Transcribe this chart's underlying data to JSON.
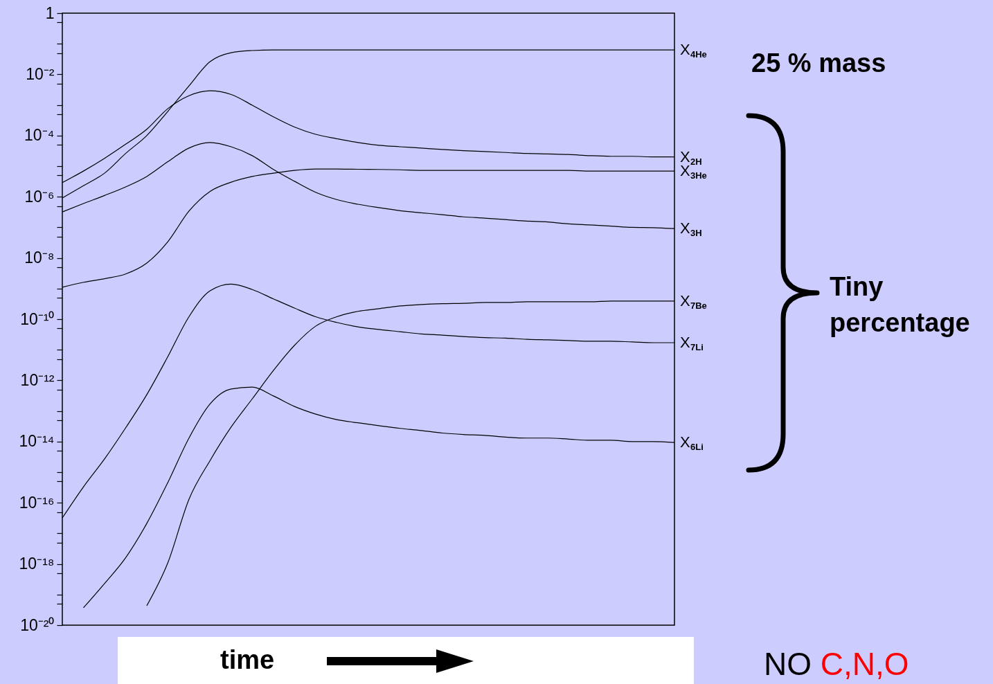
{
  "chart_data": {
    "type": "line",
    "xlabel": "time",
    "log": true,
    "line_style": "solid",
    "tick_labels": "y",
    "categories": [
      null,
      null,
      null,
      null,
      null,
      null,
      null,
      null,
      null,
      null,
      null,
      null,
      null,
      null,
      null,
      null,
      null,
      null,
      null,
      null,
      null,
      null,
      null,
      null,
      null,
      null,
      null,
      null,
      null,
      null
    ],
    "ylim": [
      1e-20,
      1
    ],
    "yticks": [
      {
        "value": 1,
        "label": "1"
      },
      {
        "value": 0.5,
        "label": null
      },
      {
        "value": 0.1,
        "label": null
      },
      {
        "value": 0.05,
        "label": null
      },
      {
        "value": 0.01,
        "label": "10⁻²"
      },
      {
        "value": 0.005,
        "label": null
      },
      {
        "value": 0.001,
        "label": null
      },
      {
        "value": 0.0005,
        "label": null
      },
      {
        "value": 0.0001,
        "label": "10⁻⁴"
      },
      {
        "value": 5e-05,
        "label": null
      },
      {
        "value": 1e-05,
        "label": null
      },
      {
        "value": 5e-06,
        "label": null
      },
      {
        "value": 1e-06,
        "label": "10⁻⁶"
      },
      {
        "value": 5e-07,
        "label": null
      },
      {
        "value": 1e-07,
        "label": null
      },
      {
        "value": 5e-08,
        "label": null
      },
      {
        "value": 1e-08,
        "label": "10⁻⁸"
      },
      {
        "value": 5e-09,
        "label": null
      },
      {
        "value": 1e-09,
        "label": null
      },
      {
        "value": 5e-10,
        "label": null
      },
      {
        "value": 1e-10,
        "label": "10⁻¹⁰"
      },
      {
        "value": 5e-11,
        "label": null
      },
      {
        "value": 1e-11,
        "label": null
      },
      {
        "value": 5e-12,
        "label": null
      },
      {
        "value": 1e-12,
        "label": "10⁻¹²"
      },
      {
        "value": 5e-13,
        "label": null
      },
      {
        "value": 1e-13,
        "label": null
      },
      {
        "value": 5e-14,
        "label": null
      },
      {
        "value": 1e-14,
        "label": "10⁻¹⁴"
      },
      {
        "value": 5e-15,
        "label": null
      },
      {
        "value": 1e-15,
        "label": null
      },
      {
        "value": 5e-16,
        "label": null
      },
      {
        "value": 1e-16,
        "label": "10⁻¹⁶"
      },
      {
        "value": 5e-17,
        "label": null
      },
      {
        "value": 1e-17,
        "label": null
      },
      {
        "value": 5e-18,
        "label": null
      },
      {
        "value": 1e-18,
        "label": "10⁻¹⁸"
      },
      {
        "value": 5e-19,
        "label": null
      },
      {
        "value": 1e-19,
        "label": null
      },
      {
        "value": 5e-20,
        "label": null
      },
      {
        "value": 1e-20,
        "label": "10⁻²⁰"
      }
    ],
    "series": [
      {
        "name": "X$_{4He}$",
        "color": "#000000",
        "values": [
          9.1e-07,
          2.3e-06,
          5.9e-06,
          2.6e-05,
          0.0001,
          0.00062,
          0.0042,
          0.026,
          0.051,
          0.06,
          0.063,
          0.063,
          0.063,
          0.063,
          0.063,
          0.063,
          0.063,
          0.063,
          0.063,
          0.063,
          0.063,
          0.063,
          0.063,
          0.063,
          0.063,
          0.063,
          0.063,
          0.063,
          0.063,
          0.063
        ]
      },
      {
        "name": "X$_{2H}$",
        "color": "#000000",
        "values": [
          2.9e-06,
          6.9e-06,
          1.8e-05,
          5.2e-05,
          0.00016,
          0.00076,
          0.002,
          0.0029,
          0.0022,
          0.00098,
          0.00041,
          0.00019,
          0.00011,
          7.9e-05,
          5.9e-05,
          4.8e-05,
          4.3e-05,
          3.9e-05,
          3.5e-05,
          3.2e-05,
          3e-05,
          2.8e-05,
          2.6e-05,
          2.5e-05,
          2.4e-05,
          2.2e-05,
          2.1e-05,
          2.1e-05,
          2e-05,
          2e-05
        ]
      },
      {
        "name": "X$_{3He}$",
        "color": "#000000",
        "values": [
          1.1e-09,
          1.6e-09,
          2.1e-09,
          3e-09,
          6.8e-09,
          3.4e-08,
          3.4e-07,
          1.5e-06,
          3e-06,
          4.6e-06,
          5.9e-06,
          7.3e-06,
          8.1e-06,
          8.1e-06,
          7.9e-06,
          7.8e-06,
          7.6e-06,
          7.3e-06,
          7.3e-06,
          7.3e-06,
          7.3e-06,
          7.3e-06,
          7.3e-06,
          7.3e-06,
          7.3e-06,
          6.9e-06,
          6.9e-06,
          6.9e-06,
          6.9e-06,
          6.9e-06
        ]
      },
      {
        "name": "X$_{3H}$",
        "color": "#000000",
        "values": [
          3.2e-07,
          6e-07,
          1.1e-06,
          2.1e-06,
          4.6e-06,
          1.4e-05,
          3.9e-05,
          5.9e-05,
          4.3e-05,
          2.2e-05,
          7.8e-06,
          3.2e-06,
          1.4e-06,
          8.1e-07,
          5.7e-07,
          4.4e-07,
          3.5e-07,
          3e-07,
          2.6e-07,
          2.2e-07,
          2e-07,
          1.8e-07,
          1.6e-07,
          1.5e-07,
          1.3e-07,
          1.2e-07,
          1.1e-07,
          1e-07,
          9.8e-08,
          9.1e-08
        ]
      },
      {
        "name": "X$_{7Be}$",
        "color": "#000000",
        "values": [
          null,
          null,
          null,
          null,
          4.3e-20,
          1.1e-18,
          1.3e-16,
          2.4e-15,
          3e-14,
          2.5e-13,
          2.1e-12,
          1.4e-11,
          5.9e-11,
          1.2e-10,
          1.8e-10,
          2.2e-10,
          2.7e-10,
          3e-10,
          3.2e-10,
          3.3e-10,
          3.5e-10,
          3.5e-10,
          3.7e-10,
          3.7e-10,
          3.7e-10,
          3.7e-10,
          3.9e-10,
          3.9e-10,
          3.9e-10,
          3.9e-10
        ]
      },
      {
        "name": "X$_{7Li}$",
        "color": "#000000",
        "values": [
          3.2e-17,
          3.3e-16,
          2.7e-15,
          2.8e-14,
          3.4e-13,
          6e-12,
          1.2e-10,
          8.5e-10,
          1.4e-09,
          9.3e-10,
          4.6e-10,
          2.3e-10,
          1.2e-10,
          7.8e-11,
          5.6e-11,
          4.6e-11,
          3.9e-11,
          3.3e-11,
          3e-11,
          2.7e-11,
          2.5e-11,
          2.4e-11,
          2.2e-11,
          2.1e-11,
          2e-11,
          1.9e-11,
          1.9e-11,
          1.8e-11,
          1.7e-11,
          1.7e-11
        ]
      },
      {
        "name": "X$_{6Li}$",
        "color": "#000000",
        "values": [
          null,
          3.7e-20,
          2.3e-19,
          1.6e-18,
          2.1e-17,
          4.6e-16,
          1.3e-14,
          1.7e-13,
          5.2e-13,
          6e-13,
          3.1e-13,
          1.4e-13,
          7.9e-14,
          5.2e-14,
          4.1e-14,
          3.3e-14,
          2.7e-14,
          2.3e-14,
          1.9e-14,
          1.7e-14,
          1.6e-14,
          1.4e-14,
          1.3e-14,
          1.3e-14,
          1.2e-14,
          1.1e-14,
          1.1e-14,
          1e-14,
          1e-14,
          9.3e-15
        ]
      }
    ],
    "annotations": [
      "25 % mass",
      "Tiny percentage",
      "NO C,N,O"
    ]
  }
}
